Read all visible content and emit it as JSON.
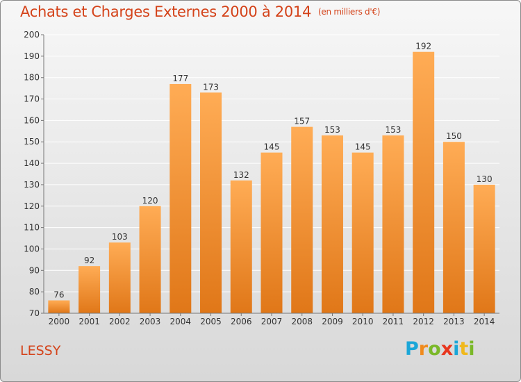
{
  "header": {
    "title": "Achats et Charges Externes 2000 à 2014",
    "unit": "(en milliers d'€)"
  },
  "footer": {
    "commune": "LESSY",
    "logo": {
      "letters": [
        "P",
        "r",
        "o",
        "x",
        "i",
        "t",
        "i"
      ],
      "colors": [
        "#1aa6d8",
        "#f08a1c",
        "#7ab828",
        "#e8361e",
        "#1aa6d8",
        "#f0b81c",
        "#7ab828"
      ]
    }
  },
  "colors": {
    "bar_light": "#ffac55",
    "bar_dark": "#e07718",
    "grid": "#ffffff",
    "axis": "#777777",
    "text": "#333333",
    "accent": "#d4431a"
  },
  "chart_data": {
    "type": "bar",
    "categories": [
      "2000",
      "2001",
      "2002",
      "2003",
      "2004",
      "2005",
      "2006",
      "2007",
      "2008",
      "2009",
      "2010",
      "2011",
      "2012",
      "2013",
      "2014"
    ],
    "values": [
      76,
      92,
      103,
      120,
      177,
      173,
      132,
      145,
      157,
      153,
      145,
      153,
      192,
      150,
      130
    ],
    "ylim": [
      70,
      200
    ],
    "yticks": [
      70,
      80,
      90,
      100,
      110,
      120,
      130,
      140,
      150,
      160,
      170,
      180,
      190,
      200
    ],
    "grid": true,
    "data_labels": true
  }
}
